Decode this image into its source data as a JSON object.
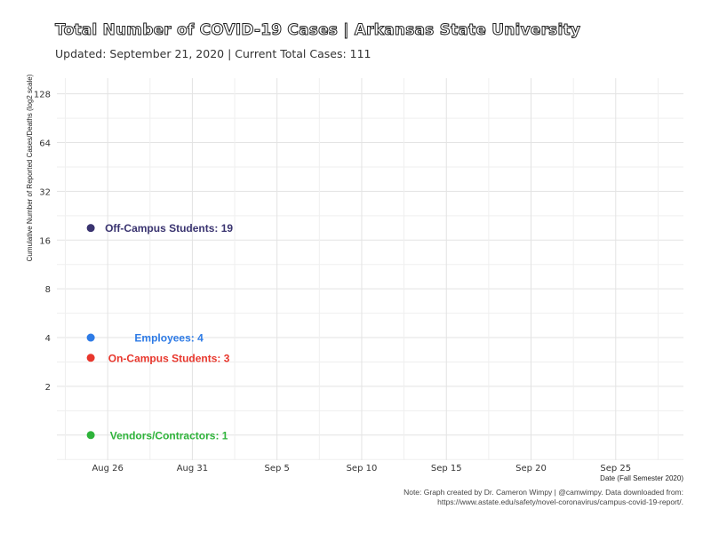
{
  "chart_data": {
    "type": "scatter",
    "title": "Total Number of COVID-19 Cases | Arkansas State University",
    "subtitle": "Updated: September 21, 2020 | Current Total Cases: 111",
    "xlabel": "Date (Fall Semester 2020)",
    "ylabel": "Cumulative Number of Reported Cases/Deaths (log2 scale)",
    "y_scale": "log2",
    "ylim": [
      0.7,
      160
    ],
    "xlim": [
      "2020-08-23",
      "2020-09-29"
    ],
    "x_ticks": [
      {
        "date": "2020-08-26",
        "label": "Aug 26"
      },
      {
        "date": "2020-08-31",
        "label": "Aug 31"
      },
      {
        "date": "2020-09-05",
        "label": "Sep  5"
      },
      {
        "date": "2020-09-10",
        "label": "Sep 10"
      },
      {
        "date": "2020-09-15",
        "label": "Sep 15"
      },
      {
        "date": "2020-09-20",
        "label": "Sep 20"
      },
      {
        "date": "2020-09-25",
        "label": "Sep 25"
      }
    ],
    "y_ticks": [
      2,
      4,
      8,
      16,
      32,
      64,
      128
    ],
    "grid": true,
    "legend": "none",
    "points": [
      {
        "x": "2020-08-25",
        "y": 19,
        "label": "Off-Campus Students: 19",
        "color": "#3a3470"
      },
      {
        "x": "2020-08-25",
        "y": 4,
        "label": "Employees: 4",
        "color": "#2e7be6"
      },
      {
        "x": "2020-08-25",
        "y": 3,
        "label": "On-Campus Students: 3",
        "color": "#e8372d"
      },
      {
        "x": "2020-08-25",
        "y": 1,
        "label": "Vendors/Contractors: 1",
        "color": "#2eb33a"
      }
    ],
    "caption_lines": [
      "Note: Graph created by Dr. Cameron Wimpy | @camwimpy. Data downloaded from:",
      "https://www.astate.edu/safety/novel-coronavirus/campus-covid-19-report/."
    ]
  }
}
